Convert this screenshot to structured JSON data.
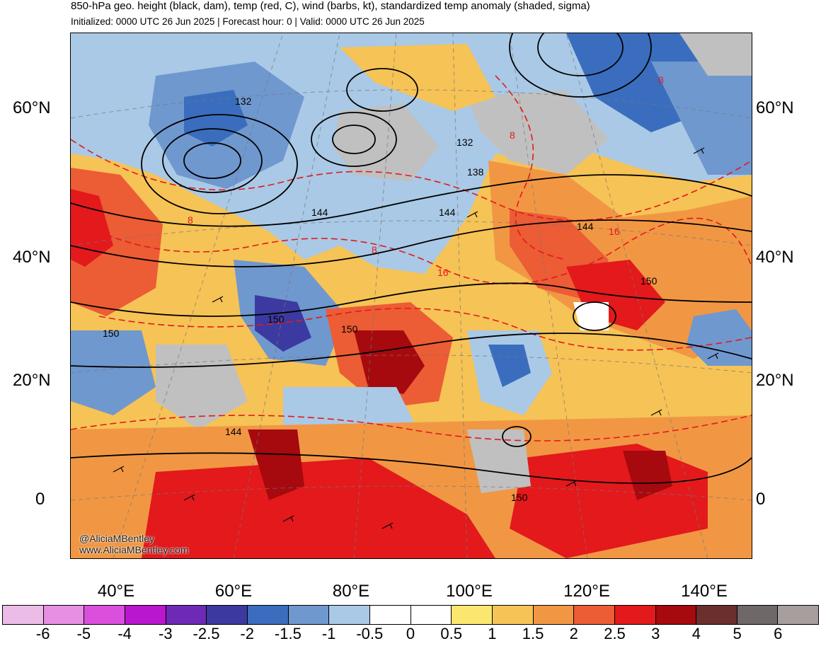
{
  "title": "850-hPa geo. height (black, dam), temp (red, C), wind (barbs, kt), standardized temp anomaly (shaded, sigma)",
  "subtitle": "Initialized: 0000 UTC 26 Jun 2025 | Forecast hour: 0 | Valid: 0000 UTC 26 Jun 2025",
  "credit_handle": "@AliciaMBentley",
  "credit_url": "www.AliciaMBentley.com",
  "lat_labels": [
    "60°N",
    "40°N",
    "20°N",
    "0"
  ],
  "lon_labels": [
    "40°E",
    "60°E",
    "80°E",
    "100°E",
    "120°E",
    "140°E"
  ],
  "height_contour_labels": [
    "132",
    "132",
    "138",
    "144",
    "144",
    "144",
    "144",
    "150",
    "150",
    "150",
    "150",
    "150"
  ],
  "temp_contour_labels": [
    "8",
    "8",
    "8",
    "8",
    "16",
    "16"
  ],
  "colorbar": {
    "labels": [
      "-6",
      "-5",
      "-4",
      "-3",
      "-2.5",
      "-2",
      "-1.5",
      "-1",
      "-0.5",
      "0",
      "0.5",
      "1",
      "1.5",
      "2",
      "2.5",
      "3",
      "4",
      "5",
      "6"
    ],
    "colors": [
      "#ebbde6",
      "#e68fe3",
      "#da4fdb",
      "#b817cf",
      "#6e2ab5",
      "#3c3aa0",
      "#3a6dbd",
      "#6f98cf",
      "#a9c9e6",
      "#ffffff",
      "#ffffff",
      "#fbe770",
      "#f6c356",
      "#f19744",
      "#ec5c35",
      "#e3191c",
      "#a6090e",
      "#6b2f2e",
      "#6e6968",
      "#a79f9d"
    ]
  }
}
